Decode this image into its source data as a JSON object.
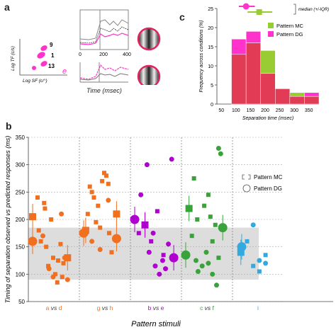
{
  "panel_a": {
    "letter": "a",
    "cluster_labels": [
      "9",
      "1",
      "13",
      "e"
    ],
    "xlabel": "Log SF (c/°)",
    "ylabel": "Log TF (c/s)",
    "trace_xlabel": "Time (msec)",
    "trace_ticks": [
      "0",
      "200",
      "400"
    ]
  },
  "panel_c": {
    "letter": "c",
    "legend_median": "median (+/-IQR)",
    "colors": {
      "mc": "#99cc33",
      "dg": "#ff33cc",
      "overlap": "#e23b55"
    }
  },
  "panel_b": {
    "letter": "b",
    "colors": {
      "a_vs_d": "#f07020",
      "g_vs_h": "#f07020",
      "b_vs_e": "#b000d0",
      "c_vs_f": "#3aa23a",
      "i": "#33aadd",
      "band": "#dddddd"
    }
  },
  "chart_data": [
    {
      "type": "bar",
      "panel": "c",
      "title": "",
      "xlabel": "Separation time (msec)",
      "ylabel": "Frequency across conditions (%)",
      "categories": [
        "50",
        "100",
        "150",
        "200",
        "250",
        "300",
        "350"
      ],
      "series": [
        {
          "name": "Pattern MC",
          "values": [
            0,
            13,
            16,
            14,
            4,
            3,
            2
          ]
        },
        {
          "name": "Pattern DG",
          "values": [
            0,
            17,
            19,
            8,
            4,
            2,
            3
          ]
        }
      ],
      "ylim": [
        0,
        25
      ],
      "yticks": [
        "0",
        "5",
        "10",
        "15",
        "20",
        "25"
      ],
      "median_iqr": [
        {
          "name": "Pattern MC",
          "median": 170,
          "iqr": [
            130,
            215
          ]
        },
        {
          "name": "Pattern DG",
          "median": 125,
          "iqr": [
            100,
            155
          ]
        }
      ],
      "legend": "top-right",
      "grid": false
    },
    {
      "type": "scatter",
      "panel": "b",
      "title": "",
      "xlabel": "Pattern stimuli",
      "ylabel": "Timing of separation observed vs predicted responses (ms)",
      "ylim": [
        50,
        350
      ],
      "yticks": [
        "50",
        "100",
        "150",
        "200",
        "250",
        "300",
        "350"
      ],
      "shaded_band": [
        90,
        185
      ],
      "groups": [
        {
          "left": "a",
          "vs": "vs",
          "right": "d",
          "color": "#f07020"
        },
        {
          "left": "g",
          "vs": "vs",
          "right": "h",
          "color": "#f07020"
        },
        {
          "left": "b",
          "vs": "vs",
          "right": "e",
          "color": "#b000d0"
        },
        {
          "left": "c",
          "vs": "vs",
          "right": "f",
          "color": "#3aa23a"
        },
        {
          "left": "i",
          "vs": "",
          "right": "",
          "color": "#33aadd"
        }
      ],
      "series": [
        {
          "name": "Pattern MC",
          "marker": "square",
          "points": [
            {
              "g": 0,
              "o": 0.0,
              "y": 205,
              "big": true
            },
            {
              "g": 0,
              "o": 0.12,
              "y": 240
            },
            {
              "g": 0,
              "o": 0.15,
              "y": 180
            },
            {
              "g": 0,
              "o": 0.2,
              "y": 160
            },
            {
              "g": 0,
              "o": 0.28,
              "y": 230
            },
            {
              "g": 0,
              "o": 0.3,
              "y": 220
            },
            {
              "g": 0,
              "o": 0.33,
              "y": 150
            },
            {
              "g": 0,
              "o": 0.38,
              "y": 115
            },
            {
              "g": 0,
              "o": 0.45,
              "y": 200
            },
            {
              "g": 0,
              "o": 0.5,
              "y": 130
            },
            {
              "g": 0,
              "o": 0.55,
              "y": 100
            },
            {
              "g": 0,
              "o": 0.6,
              "y": 85
            },
            {
              "g": 0,
              "o": 0.62,
              "y": 125
            },
            {
              "g": 0,
              "o": 0.68,
              "y": 155
            },
            {
              "g": 0,
              "o": 0.72,
              "y": 95
            },
            {
              "g": 0,
              "o": 0.75,
              "y": 120
            },
            {
              "g": 0,
              "o": 0.85,
              "y": 130,
              "big": true
            },
            {
              "g": 1,
              "o": 0.05,
              "y": 180,
              "big": true
            },
            {
              "g": 1,
              "o": 0.1,
              "y": 210
            },
            {
              "g": 1,
              "o": 0.15,
              "y": 260
            },
            {
              "g": 1,
              "o": 0.2,
              "y": 250
            },
            {
              "g": 1,
              "o": 0.25,
              "y": 240
            },
            {
              "g": 1,
              "o": 0.3,
              "y": 195
            },
            {
              "g": 1,
              "o": 0.35,
              "y": 225
            },
            {
              "g": 1,
              "o": 0.4,
              "y": 185
            },
            {
              "g": 1,
              "o": 0.45,
              "y": 270
            },
            {
              "g": 1,
              "o": 0.5,
              "y": 285
            },
            {
              "g": 1,
              "o": 0.55,
              "y": 280
            },
            {
              "g": 1,
              "o": 0.6,
              "y": 265
            },
            {
              "g": 1,
              "o": 0.62,
              "y": 175
            },
            {
              "g": 1,
              "o": 0.68,
              "y": 140
            },
            {
              "g": 1,
              "o": 0.8,
              "y": 210,
              "big": true
            },
            {
              "g": 2,
              "o": 0.1,
              "y": 175
            },
            {
              "g": 2,
              "o": 0.25,
              "y": 190,
              "big": true
            },
            {
              "g": 2,
              "o": 0.4,
              "y": 160
            },
            {
              "g": 2,
              "o": 0.55,
              "y": 215
            },
            {
              "g": 2,
              "o": 0.7,
              "y": 135
            },
            {
              "g": 3,
              "o": 0.08,
              "y": 220,
              "big": true
            },
            {
              "g": 3,
              "o": 0.15,
              "y": 170
            },
            {
              "g": 3,
              "o": 0.2,
              "y": 275
            },
            {
              "g": 3,
              "o": 0.28,
              "y": 200
            },
            {
              "g": 3,
              "o": 0.45,
              "y": 225
            },
            {
              "g": 3,
              "o": 0.55,
              "y": 245
            },
            {
              "g": 3,
              "o": 0.6,
              "y": 205
            },
            {
              "g": 3,
              "o": 0.65,
              "y": 160
            },
            {
              "g": 3,
              "o": 0.72,
              "y": 190
            },
            {
              "g": 3,
              "o": 0.8,
              "y": 130
            },
            {
              "g": 4,
              "o": 0.1,
              "y": 140,
              "big": true
            },
            {
              "g": 4,
              "o": 0.25,
              "y": 160
            },
            {
              "g": 4,
              "o": 0.4,
              "y": 115
            },
            {
              "g": 4,
              "o": 0.55,
              "y": 105
            },
            {
              "g": 4,
              "o": 0.7,
              "y": 135
            }
          ]
        },
        {
          "name": "Pattern DG",
          "marker": "circle",
          "points": [
            {
              "g": 0,
              "o": 0.0,
              "y": 160,
              "big": true
            },
            {
              "g": 0,
              "o": 0.25,
              "y": 170
            },
            {
              "g": 0,
              "o": 0.4,
              "y": 110
            },
            {
              "g": 0,
              "o": 0.5,
              "y": 95
            },
            {
              "g": 0,
              "o": 0.7,
              "y": 210
            },
            {
              "g": 0,
              "o": 0.78,
              "y": 130
            },
            {
              "g": 0,
              "o": 0.85,
              "y": 90
            },
            {
              "g": 1,
              "o": 0.0,
              "y": 175,
              "big": true
            },
            {
              "g": 1,
              "o": 0.2,
              "y": 160
            },
            {
              "g": 1,
              "o": 0.4,
              "y": 145
            },
            {
              "g": 1,
              "o": 0.6,
              "y": 235
            },
            {
              "g": 1,
              "o": 0.8,
              "y": 165,
              "big": true
            },
            {
              "g": 2,
              "o": 0.0,
              "y": 200,
              "big": true
            },
            {
              "g": 2,
              "o": 0.15,
              "y": 245
            },
            {
              "g": 2,
              "o": 0.3,
              "y": 300
            },
            {
              "g": 2,
              "o": 0.35,
              "y": 140
            },
            {
              "g": 2,
              "o": 0.45,
              "y": 175
            },
            {
              "g": 2,
              "o": 0.5,
              "y": 115
            },
            {
              "g": 2,
              "o": 0.6,
              "y": 100
            },
            {
              "g": 2,
              "o": 0.68,
              "y": 125
            },
            {
              "g": 2,
              "o": 0.75,
              "y": 110
            },
            {
              "g": 2,
              "o": 0.82,
              "y": 155
            },
            {
              "g": 2,
              "o": 0.9,
              "y": 310
            },
            {
              "g": 2,
              "o": 0.95,
              "y": 130,
              "big": true
            },
            {
              "g": 3,
              "o": 0.0,
              "y": 135,
              "big": true
            },
            {
              "g": 3,
              "o": 0.25,
              "y": 125
            },
            {
              "g": 3,
              "o": 0.3,
              "y": 105
            },
            {
              "g": 3,
              "o": 0.4,
              "y": 115
            },
            {
              "g": 3,
              "o": 0.5,
              "y": 140
            },
            {
              "g": 3,
              "o": 0.55,
              "y": 120
            },
            {
              "g": 3,
              "o": 0.65,
              "y": 100
            },
            {
              "g": 3,
              "o": 0.75,
              "y": 80
            },
            {
              "g": 3,
              "o": 0.8,
              "y": 330
            },
            {
              "g": 3,
              "o": 0.85,
              "y": 320
            },
            {
              "g": 3,
              "o": 0.9,
              "y": 185,
              "big": true
            },
            {
              "g": 4,
              "o": 0.12,
              "y": 150,
              "big": true
            },
            {
              "g": 4,
              "o": 0.4,
              "y": 190
            },
            {
              "g": 4,
              "o": 0.55,
              "y": 125
            },
            {
              "g": 4,
              "o": 0.7,
              "y": 120
            }
          ]
        }
      ],
      "legend": "right",
      "grid": true
    }
  ]
}
